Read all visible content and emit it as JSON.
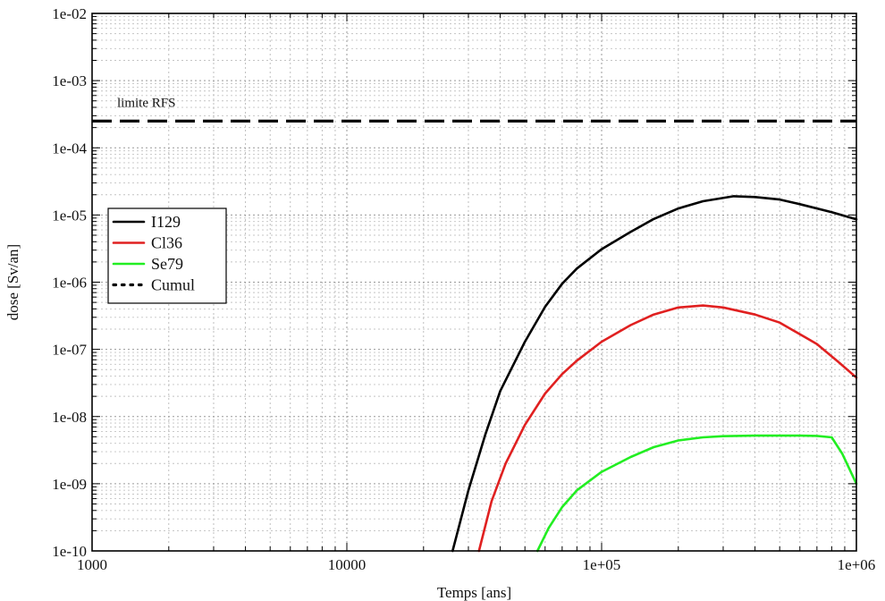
{
  "chart_data": {
    "type": "line",
    "title": "",
    "xlabel": "Temps [ans]",
    "ylabel": "dose [Sv/an]",
    "x_scale": "log",
    "y_scale": "log",
    "xlim": [
      1000,
      1000000
    ],
    "ylim": [
      1e-10,
      0.01
    ],
    "grid": true,
    "legend_position": "left-middle",
    "x_ticks": [
      {
        "value": 1000,
        "label": "1000"
      },
      {
        "value": 10000,
        "label": "10000"
      },
      {
        "value": 100000,
        "label": "1e+05"
      },
      {
        "value": 1000000,
        "label": "1e+06"
      }
    ],
    "y_ticks": [
      {
        "value": 1e-10,
        "label": "1e-10"
      },
      {
        "value": 1e-09,
        "label": "1e-09"
      },
      {
        "value": 1e-08,
        "label": "1e-08"
      },
      {
        "value": 1e-07,
        "label": "1e-07"
      },
      {
        "value": 1e-06,
        "label": "1e-06"
      },
      {
        "value": 1e-05,
        "label": "1e-05"
      },
      {
        "value": 0.0001,
        "label": "1e-04"
      },
      {
        "value": 0.001,
        "label": "1e-03"
      },
      {
        "value": 0.01,
        "label": "1e-02"
      }
    ],
    "series": [
      {
        "name": "I129",
        "color": "#000000",
        "style": "solid",
        "points": [
          [
            26000,
            1e-10
          ],
          [
            30000,
            8e-10
          ],
          [
            35000,
            5.5e-09
          ],
          [
            40000,
            2.4e-08
          ],
          [
            50000,
            1.3e-07
          ],
          [
            60000,
            4.3e-07
          ],
          [
            70000,
            9.5e-07
          ],
          [
            80000,
            1.6e-06
          ],
          [
            100000,
            3.1e-06
          ],
          [
            130000,
            5.6e-06
          ],
          [
            160000,
            8.7e-06
          ],
          [
            200000,
            1.25e-05
          ],
          [
            250000,
            1.6e-05
          ],
          [
            330000,
            1.9e-05
          ],
          [
            400000,
            1.85e-05
          ],
          [
            500000,
            1.7e-05
          ],
          [
            600000,
            1.45e-05
          ],
          [
            800000,
            1.1e-05
          ],
          [
            1000000,
            8.6e-06
          ]
        ]
      },
      {
        "name": "Cl36",
        "color": "#e02020",
        "style": "solid",
        "points": [
          [
            33000,
            1e-10
          ],
          [
            37000,
            5.5e-10
          ],
          [
            42000,
            2e-09
          ],
          [
            50000,
            7.5e-09
          ],
          [
            60000,
            2.2e-08
          ],
          [
            70000,
            4.3e-08
          ],
          [
            80000,
            6.8e-08
          ],
          [
            100000,
            1.3e-07
          ],
          [
            130000,
            2.3e-07
          ],
          [
            160000,
            3.3e-07
          ],
          [
            200000,
            4.2e-07
          ],
          [
            250000,
            4.5e-07
          ],
          [
            300000,
            4.2e-07
          ],
          [
            400000,
            3.3e-07
          ],
          [
            500000,
            2.5e-07
          ],
          [
            700000,
            1.2e-07
          ],
          [
            850000,
            6.5e-08
          ],
          [
            1000000,
            3.8e-08
          ]
        ]
      },
      {
        "name": "Se79",
        "color": "#22ee22",
        "style": "solid",
        "points": [
          [
            56000,
            1e-10
          ],
          [
            62000,
            2.2e-10
          ],
          [
            70000,
            4.5e-10
          ],
          [
            80000,
            8e-10
          ],
          [
            100000,
            1.5e-09
          ],
          [
            130000,
            2.5e-09
          ],
          [
            160000,
            3.5e-09
          ],
          [
            200000,
            4.4e-09
          ],
          [
            250000,
            4.9e-09
          ],
          [
            300000,
            5.1e-09
          ],
          [
            400000,
            5.2e-09
          ],
          [
            500000,
            5.2e-09
          ],
          [
            600000,
            5.2e-09
          ],
          [
            700000,
            5.15e-09
          ],
          [
            800000,
            4.9e-09
          ],
          [
            880000,
            2.8e-09
          ],
          [
            950000,
            1.5e-09
          ],
          [
            1000000,
            1e-09
          ]
        ]
      },
      {
        "name": "Cumul",
        "color": "#000000",
        "style": "dotted",
        "points": []
      }
    ],
    "reference_lines": [
      {
        "label": "limite RFS",
        "value": 0.00025,
        "color": "#000000",
        "style": "dashed"
      }
    ]
  }
}
